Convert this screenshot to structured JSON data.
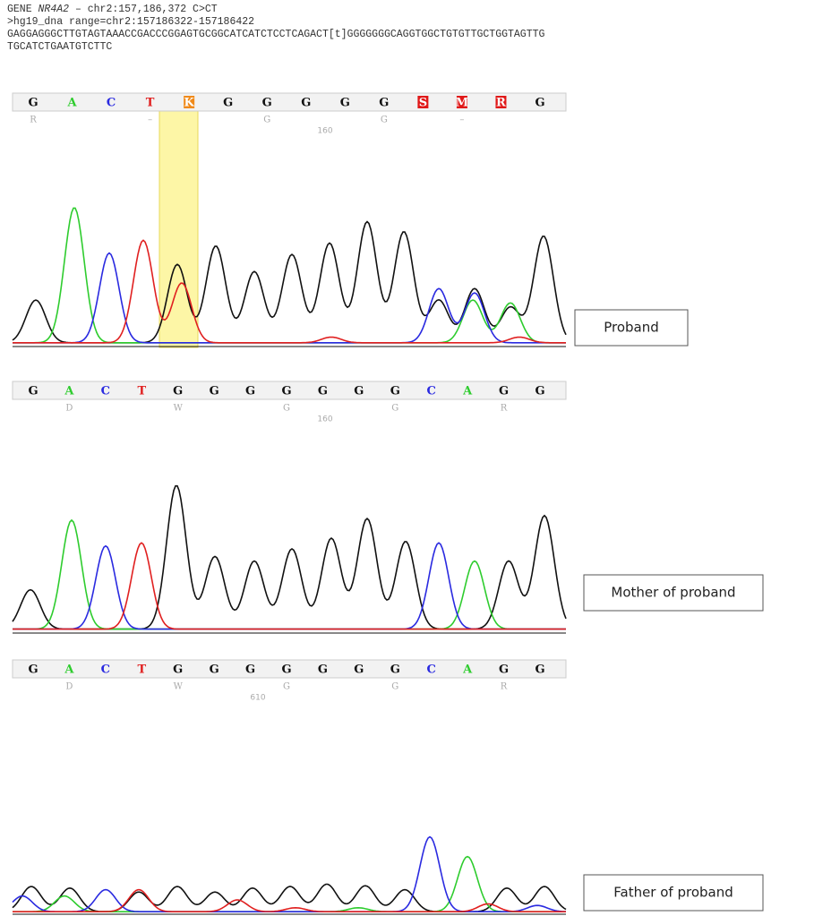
{
  "header": {
    "line1_prefix": "GENE",
    "gene": "NR4A2",
    "line1_suffix": "– chr2:157,186,372 C>CT",
    "line2": ">hg19_dna range=chr2:157186322-157186422",
    "line3": "GAGGAGGGCTTGTAGTAAACCGACCCGGAGTGCGGCATCATCTCCTCAGACT[t]GGGGGGGCAGGTGGCTGTGTTGCTGGTAGTTG",
    "line4": "TGCATCTGAATGTCTTC"
  },
  "panels": [
    {
      "label": "Proband",
      "bases": [
        "G",
        "A",
        "C",
        "T",
        "K",
        "G",
        "G",
        "G",
        "G",
        "G",
        "S",
        "M",
        "R",
        "G"
      ],
      "secondary": [
        "R",
        null,
        null,
        "–",
        null,
        null,
        "G",
        null,
        null,
        "G",
        null,
        "–",
        null,
        null
      ],
      "position": "160"
    },
    {
      "label": "Mother of proband",
      "bases": [
        "G",
        "A",
        "C",
        "T",
        "G",
        "G",
        "G",
        "G",
        "G",
        "G",
        "G",
        "C",
        "A",
        "G",
        "G"
      ],
      "secondary": [
        null,
        "D",
        null,
        null,
        "W",
        null,
        null,
        "G",
        null,
        null,
        "G",
        null,
        null,
        "R",
        null
      ],
      "position": "160"
    },
    {
      "label": "Father of proband",
      "bases": [
        "G",
        "A",
        "C",
        "T",
        "G",
        "G",
        "G",
        "G",
        "G",
        "G",
        "G",
        "C",
        "A",
        "G",
        "G"
      ],
      "secondary": [
        null,
        "D",
        null,
        null,
        "W",
        null,
        null,
        "G",
        null,
        null,
        "G",
        null,
        null,
        "R",
        null
      ],
      "position": "610"
    }
  ]
}
